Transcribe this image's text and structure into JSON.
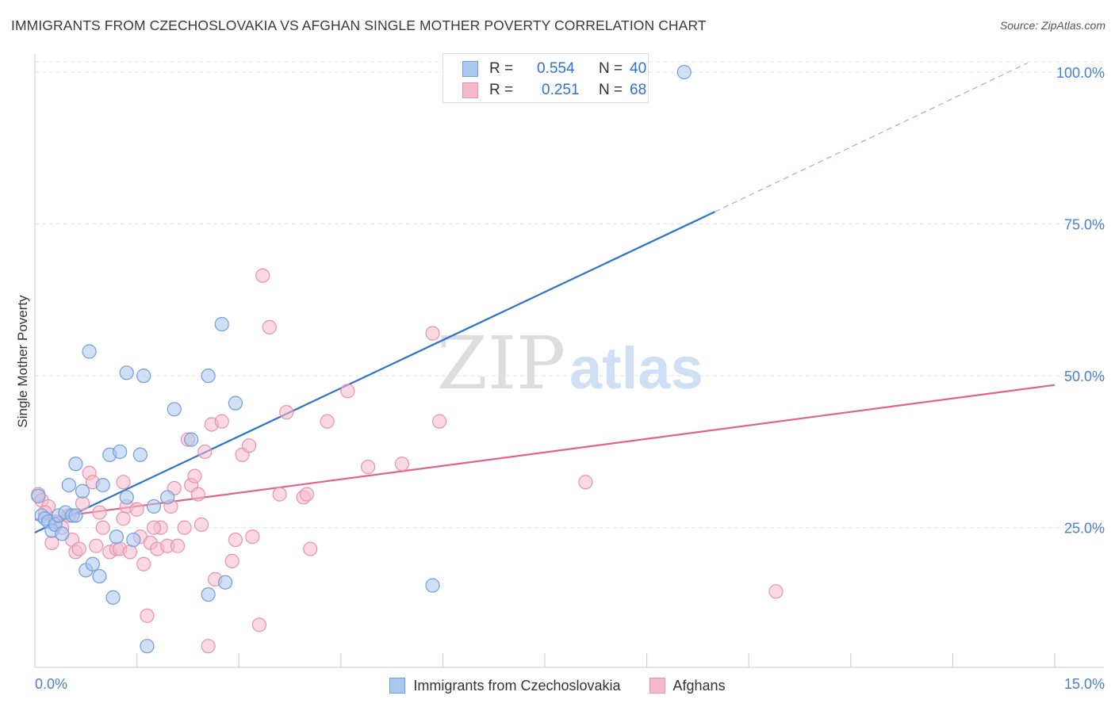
{
  "header": {
    "title": "IMMIGRANTS FROM CZECHOSLOVAKIA VS AFGHAN SINGLE MOTHER POVERTY CORRELATION CHART",
    "source": "Source: ZipAtlas.com"
  },
  "watermark": {
    "zip": "ZIP",
    "atlas": "atlas"
  },
  "stats": {
    "r_label": "R =",
    "n_label": "N =",
    "rows": [
      {
        "r": "0.554",
        "n": "40"
      },
      {
        "r": "0.251",
        "n": "68"
      }
    ]
  },
  "colors": {
    "blue_fill": "#a9c7ef",
    "blue_stroke": "#6f9fdc",
    "blue_line": "#2e72cf",
    "pink_fill": "#f6b9cb",
    "pink_stroke": "#e892ad",
    "pink_line": "#e2628f",
    "axis_text": "#4a7fcf"
  },
  "chart_data": {
    "type": "scatter",
    "title": "IMMIGRANTS FROM CZECHOSLOVAKIA VS AFGHAN SINGLE MOTHER POVERTY CORRELATION CHART",
    "xlabel": "",
    "ylabel": "Single Mother Poverty",
    "xlim": [
      0,
      15
    ],
    "ylim": [
      2,
      103
    ],
    "x_tick_labels": [
      "0.0%",
      "15.0%"
    ],
    "y_ticks": [
      25,
      50,
      75,
      100
    ],
    "y_tick_labels": [
      "25.0%",
      "50.0%",
      "75.0%",
      "100.0%"
    ],
    "grid": true,
    "legend_position": "bottom",
    "series": [
      {
        "name": "Immigrants from Czechoslovakia",
        "color": "blue",
        "r": 0.554,
        "n": 40,
        "trend": {
          "x0": 0,
          "y0": 24.2,
          "x1": 10.0,
          "y1": 77.0,
          "dash_to_x": 14.6,
          "dash_to_y": 101.5
        },
        "points": [
          [
            0.05,
            30.2
          ],
          [
            0.1,
            27.0
          ],
          [
            0.15,
            26.5
          ],
          [
            0.2,
            26.0
          ],
          [
            0.25,
            24.5
          ],
          [
            0.3,
            25.5
          ],
          [
            0.35,
            27.0
          ],
          [
            0.4,
            24.0
          ],
          [
            0.45,
            27.5
          ],
          [
            0.5,
            32.0
          ],
          [
            0.55,
            27.0
          ],
          [
            0.6,
            35.5
          ],
          [
            0.7,
            31.0
          ],
          [
            0.75,
            18.0
          ],
          [
            0.8,
            54.0
          ],
          [
            0.85,
            19.0
          ],
          [
            0.95,
            17.0
          ],
          [
            1.0,
            32.0
          ],
          [
            1.1,
            37.0
          ],
          [
            1.15,
            13.5
          ],
          [
            1.2,
            23.5
          ],
          [
            1.25,
            37.5
          ],
          [
            1.35,
            50.5
          ],
          [
            1.35,
            30.0
          ],
          [
            1.45,
            23.0
          ],
          [
            1.55,
            37.0
          ],
          [
            1.6,
            50.0
          ],
          [
            1.65,
            5.5
          ],
          [
            1.75,
            28.5
          ],
          [
            1.95,
            30.0
          ],
          [
            2.05,
            44.5
          ],
          [
            2.3,
            39.5
          ],
          [
            2.55,
            50.0
          ],
          [
            2.55,
            14.0
          ],
          [
            2.75,
            58.5
          ],
          [
            2.8,
            16.0
          ],
          [
            2.95,
            45.5
          ],
          [
            5.85,
            15.5
          ],
          [
            9.55,
            100.0
          ],
          [
            0.6,
            27.0
          ]
        ]
      },
      {
        "name": "Afghans",
        "color": "pink",
        "r": 0.251,
        "n": 68,
        "trend": {
          "x0": 0,
          "y0": 26.3,
          "x1": 15.0,
          "y1": 48.5
        },
        "points": [
          [
            0.05,
            30.5
          ],
          [
            0.1,
            29.5
          ],
          [
            0.2,
            28.5
          ],
          [
            0.25,
            22.5
          ],
          [
            0.3,
            26.0
          ],
          [
            0.4,
            25.0
          ],
          [
            0.5,
            27.0
          ],
          [
            0.55,
            23.0
          ],
          [
            0.6,
            21.0
          ],
          [
            0.65,
            21.5
          ],
          [
            0.7,
            29.0
          ],
          [
            0.8,
            34.0
          ],
          [
            0.85,
            32.5
          ],
          [
            0.9,
            22.0
          ],
          [
            0.95,
            27.5
          ],
          [
            1.0,
            25.0
          ],
          [
            1.1,
            21.0
          ],
          [
            1.2,
            21.5
          ],
          [
            1.25,
            21.5
          ],
          [
            1.3,
            32.5
          ],
          [
            1.35,
            28.5
          ],
          [
            1.4,
            21.0
          ],
          [
            1.5,
            28.0
          ],
          [
            1.55,
            23.5
          ],
          [
            1.6,
            19.0
          ],
          [
            1.65,
            10.5
          ],
          [
            1.7,
            22.5
          ],
          [
            1.8,
            21.5
          ],
          [
            1.85,
            25.0
          ],
          [
            1.95,
            22.0
          ],
          [
            2.0,
            28.5
          ],
          [
            2.05,
            31.5
          ],
          [
            2.2,
            25.0
          ],
          [
            2.25,
            39.5
          ],
          [
            2.3,
            32.0
          ],
          [
            2.35,
            33.5
          ],
          [
            2.4,
            30.5
          ],
          [
            2.45,
            25.5
          ],
          [
            2.5,
            37.5
          ],
          [
            2.6,
            42.0
          ],
          [
            2.65,
            16.5
          ],
          [
            2.75,
            42.5
          ],
          [
            2.9,
            19.5
          ],
          [
            2.95,
            23.0
          ],
          [
            3.05,
            37.0
          ],
          [
            3.15,
            38.5
          ],
          [
            3.2,
            23.5
          ],
          [
            3.3,
            9.0
          ],
          [
            3.35,
            66.5
          ],
          [
            3.45,
            58.0
          ],
          [
            3.6,
            30.5
          ],
          [
            3.7,
            44.0
          ],
          [
            3.95,
            30.0
          ],
          [
            4.0,
            30.5
          ],
          [
            4.05,
            21.5
          ],
          [
            4.3,
            42.5
          ],
          [
            4.6,
            47.5
          ],
          [
            4.9,
            35.0
          ],
          [
            5.4,
            35.5
          ],
          [
            5.85,
            57.0
          ],
          [
            5.95,
            42.5
          ],
          [
            8.1,
            32.5
          ],
          [
            10.9,
            14.5
          ],
          [
            2.55,
            5.5
          ],
          [
            1.3,
            26.5
          ],
          [
            0.15,
            27.5
          ],
          [
            2.1,
            22.0
          ],
          [
            1.75,
            25.0
          ]
        ]
      }
    ]
  }
}
